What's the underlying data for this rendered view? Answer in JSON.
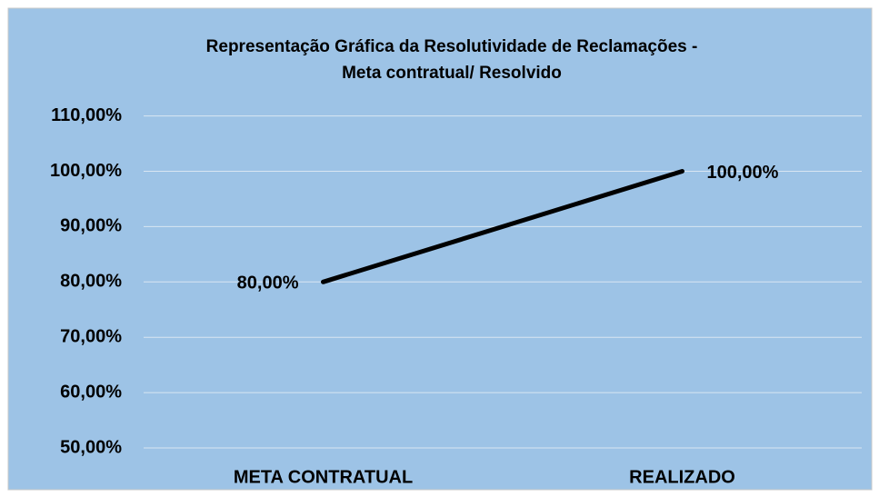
{
  "chart_data": {
    "type": "line",
    "title": [
      "Representação Gráfica da Resolutividade de Reclamações -",
      "Meta contratual/ Resolvido"
    ],
    "categories": [
      "META CONTRATUAL",
      "REALIZADO"
    ],
    "values": [
      80,
      100
    ],
    "value_labels": [
      "80,00%",
      "100,00%"
    ],
    "color": "#000000",
    "ylim": [
      50,
      110
    ],
    "yticks": [
      {
        "value": 50,
        "label": "50,00%"
      },
      {
        "value": 60,
        "label": "60,00%"
      },
      {
        "value": 70,
        "label": "70,00%"
      },
      {
        "value": 80,
        "label": "80,00%"
      },
      {
        "value": 90,
        "label": "90,00%"
      },
      {
        "value": 100,
        "label": "100,00%"
      },
      {
        "value": 110,
        "label": "110,00%"
      }
    ],
    "grid": true
  }
}
